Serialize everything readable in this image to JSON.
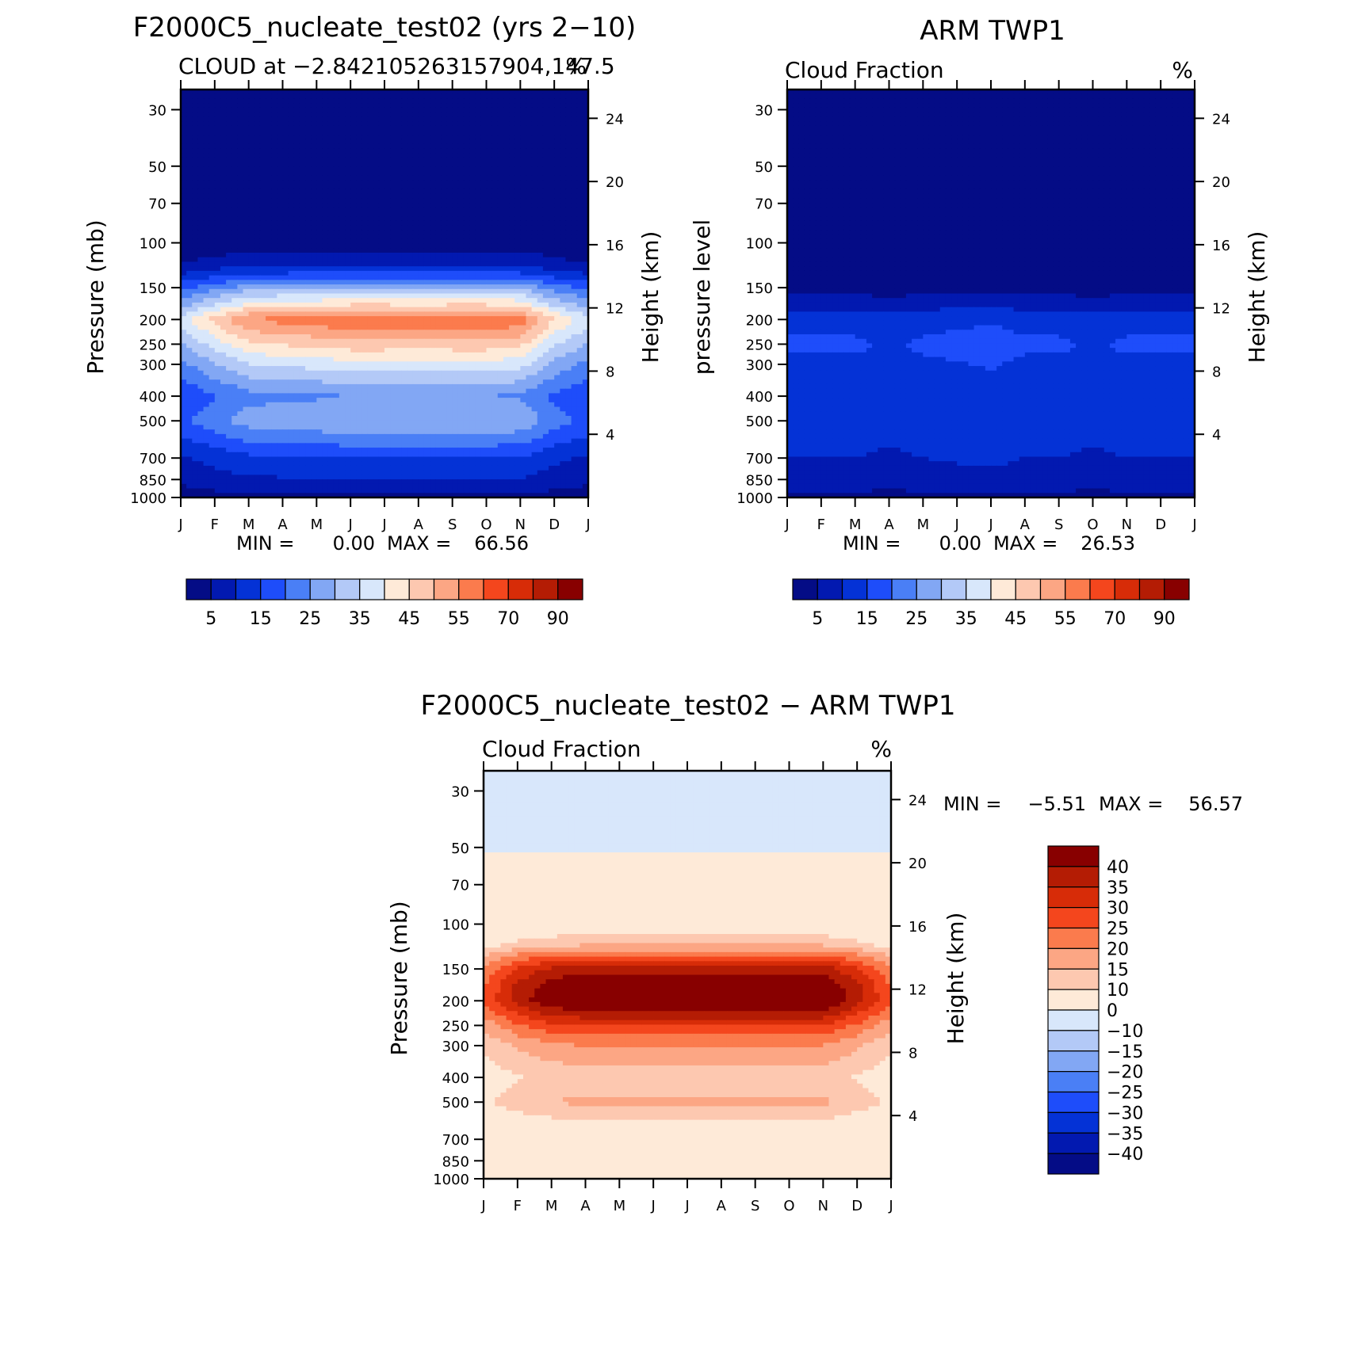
{
  "chart_data": [
    {
      "type": "heatmap",
      "title": "F2000C5_nucleate_test02 (yrs 2−10)",
      "subtitle_left": "CLOUD at −2.842105263157904,147.5",
      "subtitle_right": "%",
      "ylabel": "Pressure (mb)",
      "ylabel_right": "Height (km)",
      "x_ticks": [
        "J",
        "F",
        "M",
        "A",
        "M",
        "J",
        "J",
        "A",
        "S",
        "O",
        "N",
        "D",
        "J"
      ],
      "y_ticks": [
        "30",
        "50",
        "70",
        "100",
        "150",
        "200",
        "250",
        "300",
        "400",
        "500",
        "700",
        "850",
        "1000"
      ],
      "y_ticks_right": [
        "24",
        "20",
        "16",
        "12",
        "8",
        "4"
      ],
      "stats": {
        "min_label": "MIN =",
        "min": "0.00",
        "max_label": "MAX =",
        "max": "66.56"
      },
      "colorbar_labels": [
        "5",
        "15",
        "25",
        "35",
        "45",
        "55",
        "70",
        "90"
      ],
      "profile": [
        [
          30,
          0
        ],
        [
          70,
          1
        ],
        [
          100,
          3
        ],
        [
          120,
          8
        ],
        [
          135,
          18
        ],
        [
          150,
          30
        ],
        [
          175,
          45
        ],
        [
          200,
          60
        ],
        [
          250,
          48
        ],
        [
          300,
          38
        ],
        [
          400,
          25
        ],
        [
          500,
          30
        ],
        [
          600,
          22
        ],
        [
          700,
          15
        ],
        [
          850,
          10
        ],
        [
          950,
          6
        ],
        [
          1000,
          1
        ]
      ],
      "seasonal_strength": [
        0.62,
        0.78,
        0.92,
        0.95,
        0.97,
        1.0,
        1.0,
        0.99,
        1.0,
        1.0,
        0.97,
        0.75,
        0.62
      ]
    },
    {
      "type": "heatmap",
      "title": "ARM TWP1",
      "subtitle_left": "Cloud Fraction",
      "subtitle_right": "%",
      "ylabel": "pressure level",
      "ylabel_right": "Height (km)",
      "x_ticks": [
        "J",
        "F",
        "M",
        "A",
        "M",
        "J",
        "J",
        "A",
        "S",
        "O",
        "N",
        "D",
        "J"
      ],
      "y_ticks": [
        "30",
        "50",
        "70",
        "100",
        "150",
        "200",
        "250",
        "300",
        "400",
        "500",
        "700",
        "850",
        "1000"
      ],
      "y_ticks_right": [
        "24",
        "20",
        "16",
        "12",
        "8",
        "4"
      ],
      "stats": {
        "min_label": "MIN =",
        "min": "0.00",
        "max_label": "MAX =",
        "max": "26.53"
      },
      "colorbar_labels": [
        "5",
        "15",
        "25",
        "35",
        "45",
        "55",
        "70",
        "90"
      ],
      "profile": [
        [
          30,
          0
        ],
        [
          100,
          0.5
        ],
        [
          130,
          2
        ],
        [
          160,
          5
        ],
        [
          200,
          13
        ],
        [
          250,
          16
        ],
        [
          300,
          14
        ],
        [
          400,
          12
        ],
        [
          500,
          13
        ],
        [
          700,
          10
        ],
        [
          850,
          8
        ],
        [
          950,
          5
        ],
        [
          1000,
          2
        ]
      ],
      "seasonal_strength": [
        1.0,
        1.0,
        1.0,
        0.9,
        1.0,
        1.05,
        1.1,
        1.0,
        1.0,
        0.9,
        1.0,
        1.0,
        1.0
      ]
    },
    {
      "type": "heatmap",
      "title": "F2000C5_nucleate_test02 − ARM TWP1",
      "subtitle_left": "Cloud Fraction",
      "subtitle_right": "%",
      "ylabel": "Pressure (mb)",
      "ylabel_right": "Height (km)",
      "x_ticks": [
        "J",
        "F",
        "M",
        "A",
        "M",
        "J",
        "J",
        "A",
        "S",
        "O",
        "N",
        "D",
        "J"
      ],
      "y_ticks": [
        "30",
        "50",
        "70",
        "100",
        "150",
        "200",
        "250",
        "300",
        "400",
        "500",
        "700",
        "850",
        "1000"
      ],
      "y_ticks_right": [
        "24",
        "20",
        "16",
        "12",
        "8",
        "4"
      ],
      "stats": {
        "min_label": "MIN =",
        "min": "−5.51",
        "max_label": "MAX =",
        "max": "56.57"
      },
      "colorbar_labels": [
        "40",
        "35",
        "30",
        "25",
        "20",
        "15",
        "10",
        "0",
        "−10",
        "−15",
        "−20",
        "−25",
        "−30",
        "−35",
        "−40"
      ],
      "profile": [
        [
          30,
          -3
        ],
        [
          50,
          -1
        ],
        [
          60,
          3
        ],
        [
          100,
          5
        ],
        [
          120,
          14
        ],
        [
          135,
          28
        ],
        [
          150,
          38
        ],
        [
          175,
          45
        ],
        [
          200,
          47
        ],
        [
          250,
          30
        ],
        [
          300,
          20
        ],
        [
          400,
          12
        ],
        [
          500,
          16
        ],
        [
          600,
          9
        ],
        [
          700,
          6
        ],
        [
          850,
          5
        ],
        [
          950,
          7
        ],
        [
          1000,
          4
        ]
      ],
      "seasonal_strength": [
        0.55,
        0.8,
        0.95,
        1.0,
        1.0,
        1.0,
        1.0,
        1.0,
        1.0,
        1.0,
        1.0,
        0.8,
        0.55
      ]
    }
  ],
  "colors": {
    "abs_levels": [
      5,
      10,
      15,
      20,
      25,
      30,
      35,
      40,
      45,
      50,
      55,
      60,
      70,
      80,
      90
    ],
    "abs_palette": [
      "#040c86",
      "#0219b0",
      "#0432d6",
      "#1e4dfa",
      "#4a7ff6",
      "#82a7f4",
      "#b3c9f7",
      "#d8e7fb",
      "#feead8",
      "#fdc8b0",
      "#fca684",
      "#fb7b4d",
      "#f4461d",
      "#d72c08",
      "#b41c04",
      "#880000"
    ],
    "diff_levels": [
      -40,
      -35,
      -30,
      -25,
      -20,
      -15,
      -10,
      0,
      10,
      15,
      20,
      25,
      30,
      35,
      40
    ],
    "diff_palette": [
      "#040c86",
      "#0219b0",
      "#0432d6",
      "#1e4dfa",
      "#4a7ff6",
      "#82a7f4",
      "#b3c9f7",
      "#d8e7fb",
      "#feead8",
      "#fdc8b0",
      "#fca684",
      "#fb7b4d",
      "#f4461d",
      "#d72c08",
      "#b41c04",
      "#880000"
    ]
  }
}
